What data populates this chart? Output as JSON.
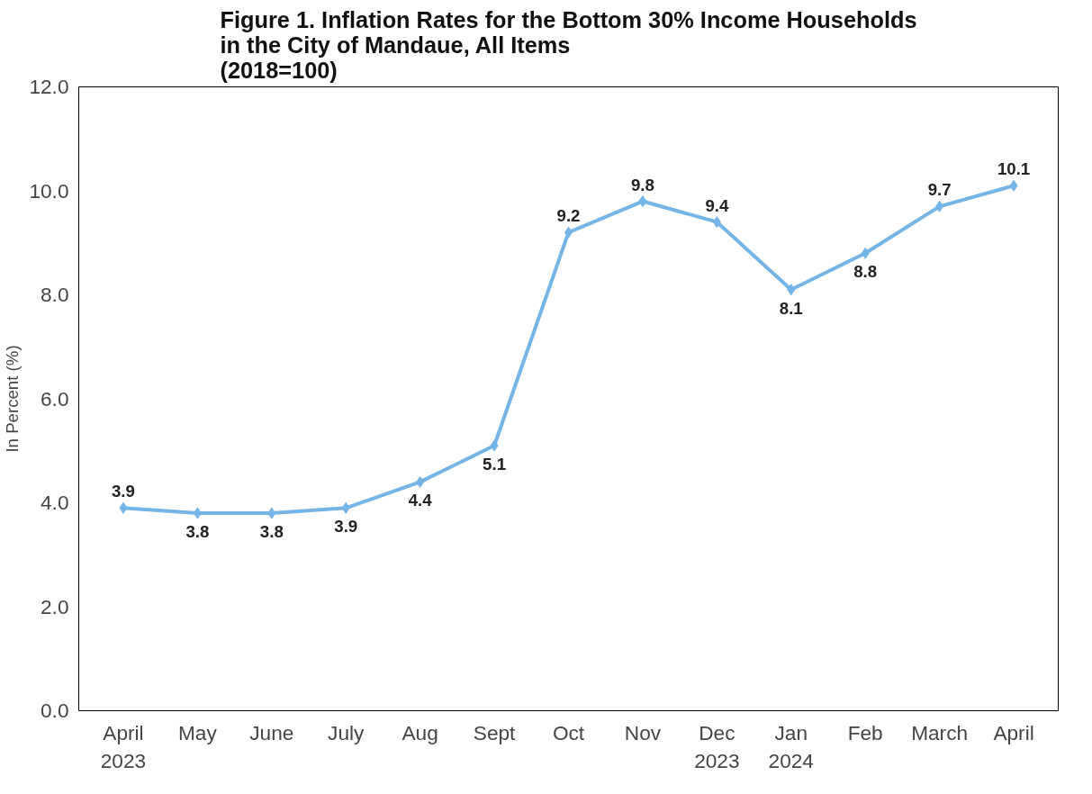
{
  "chart_data": {
    "type": "line",
    "title": "Figure 1. Inflation Rates for the Bottom 30% Income Households\nin the City of Mandaue, All Items\n(2018=100)",
    "ylabel": "In Percent (%)",
    "categories": [
      "April\n2023",
      "May",
      "June",
      "July",
      "Aug",
      "Sept",
      "Oct",
      "Nov",
      "Dec\n2023",
      "Jan\n2024",
      "Feb",
      "March",
      "April"
    ],
    "series": [
      {
        "color": "#74b4e6",
        "values": [
          3.9,
          3.8,
          3.8,
          3.9,
          4.4,
          5.1,
          9.2,
          9.8,
          9.4,
          8.1,
          8.8,
          9.7,
          10.1
        ]
      }
    ],
    "ylim": [
      0,
      12
    ],
    "yticks": [
      {
        "value": 0,
        "label": "0.0"
      },
      {
        "value": 2,
        "label": "2.0"
      },
      {
        "value": 4,
        "label": "4.0"
      },
      {
        "value": 6,
        "label": "6.0"
      },
      {
        "value": 8,
        "label": "8.0"
      },
      {
        "value": 10,
        "label": "10.0"
      },
      {
        "value": 12,
        "label": "12.0"
      }
    ],
    "data_labels": true,
    "marker": "diamond",
    "line_style": "solid",
    "grid": false
  }
}
